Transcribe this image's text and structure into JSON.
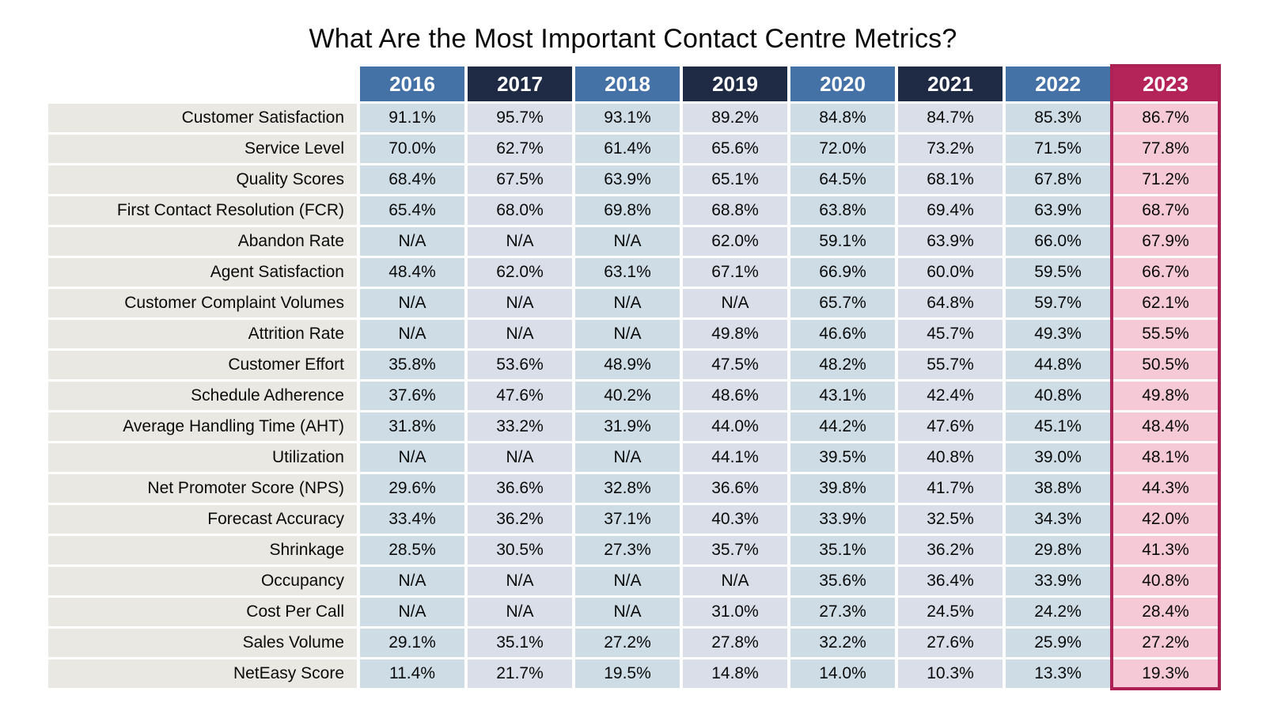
{
  "title": "What Are the Most Important Contact Centre Metrics?",
  "colors": {
    "header_blue": "#4471A6",
    "header_navy": "#1F2A45",
    "header_pink": "#B52458",
    "cell_blue": "#CEDDE5",
    "cell_gray": "#D9DEE8",
    "cell_pink": "#F5C9D6",
    "label_bg": "#E9E8E2",
    "highlight_border": "#AD2154"
  },
  "chart_data": {
    "type": "table",
    "title": "What Are the Most Important Contact Centre Metrics?",
    "columns": [
      "2016",
      "2017",
      "2018",
      "2019",
      "2020",
      "2021",
      "2022",
      "2023"
    ],
    "highlighted_column": "2023",
    "rows": [
      {
        "label": "Customer Satisfaction",
        "values": [
          "91.1%",
          "95.7%",
          "93.1%",
          "89.2%",
          "84.8%",
          "84.7%",
          "85.3%",
          "86.7%"
        ]
      },
      {
        "label": "Service Level",
        "values": [
          "70.0%",
          "62.7%",
          "61.4%",
          "65.6%",
          "72.0%",
          "73.2%",
          "71.5%",
          "77.8%"
        ]
      },
      {
        "label": "Quality Scores",
        "values": [
          "68.4%",
          "67.5%",
          "63.9%",
          "65.1%",
          "64.5%",
          "68.1%",
          "67.8%",
          "71.2%"
        ]
      },
      {
        "label": "First Contact Resolution (FCR)",
        "values": [
          "65.4%",
          "68.0%",
          "69.8%",
          "68.8%",
          "63.8%",
          "69.4%",
          "63.9%",
          "68.7%"
        ]
      },
      {
        "label": "Abandon Rate",
        "values": [
          "N/A",
          "N/A",
          "N/A",
          "62.0%",
          "59.1%",
          "63.9%",
          "66.0%",
          "67.9%"
        ]
      },
      {
        "label": "Agent Satisfaction",
        "values": [
          "48.4%",
          "62.0%",
          "63.1%",
          "67.1%",
          "66.9%",
          "60.0%",
          "59.5%",
          "66.7%"
        ]
      },
      {
        "label": "Customer Complaint Volumes",
        "values": [
          "N/A",
          "N/A",
          "N/A",
          "N/A",
          "65.7%",
          "64.8%",
          "59.7%",
          "62.1%"
        ]
      },
      {
        "label": "Attrition Rate",
        "values": [
          "N/A",
          "N/A",
          "N/A",
          "49.8%",
          "46.6%",
          "45.7%",
          "49.3%",
          "55.5%"
        ]
      },
      {
        "label": "Customer Effort",
        "values": [
          "35.8%",
          "53.6%",
          "48.9%",
          "47.5%",
          "48.2%",
          "55.7%",
          "44.8%",
          "50.5%"
        ]
      },
      {
        "label": "Schedule Adherence",
        "values": [
          "37.6%",
          "47.6%",
          "40.2%",
          "48.6%",
          "43.1%",
          "42.4%",
          "40.8%",
          "49.8%"
        ]
      },
      {
        "label": "Average Handling Time (AHT)",
        "values": [
          "31.8%",
          "33.2%",
          "31.9%",
          "44.0%",
          "44.2%",
          "47.6%",
          "45.1%",
          "48.4%"
        ]
      },
      {
        "label": "Utilization",
        "values": [
          "N/A",
          "N/A",
          "N/A",
          "44.1%",
          "39.5%",
          "40.8%",
          "39.0%",
          "48.1%"
        ]
      },
      {
        "label": "Net Promoter Score (NPS)",
        "values": [
          "29.6%",
          "36.6%",
          "32.8%",
          "36.6%",
          "39.8%",
          "41.7%",
          "38.8%",
          "44.3%"
        ]
      },
      {
        "label": "Forecast Accuracy",
        "values": [
          "33.4%",
          "36.2%",
          "37.1%",
          "40.3%",
          "33.9%",
          "32.5%",
          "34.3%",
          "42.0%"
        ]
      },
      {
        "label": "Shrinkage",
        "values": [
          "28.5%",
          "30.5%",
          "27.3%",
          "35.7%",
          "35.1%",
          "36.2%",
          "29.8%",
          "41.3%"
        ]
      },
      {
        "label": "Occupancy",
        "values": [
          "N/A",
          "N/A",
          "N/A",
          "N/A",
          "35.6%",
          "36.4%",
          "33.9%",
          "40.8%"
        ]
      },
      {
        "label": "Cost Per Call",
        "values": [
          "N/A",
          "N/A",
          "N/A",
          "31.0%",
          "27.3%",
          "24.5%",
          "24.2%",
          "28.4%"
        ]
      },
      {
        "label": "Sales Volume",
        "values": [
          "29.1%",
          "35.1%",
          "27.2%",
          "27.8%",
          "32.2%",
          "27.6%",
          "25.9%",
          "27.2%"
        ]
      },
      {
        "label": "NetEasy Score",
        "values": [
          "11.4%",
          "21.7%",
          "19.5%",
          "14.8%",
          "14.0%",
          "10.3%",
          "13.3%",
          "19.3%"
        ]
      }
    ]
  }
}
